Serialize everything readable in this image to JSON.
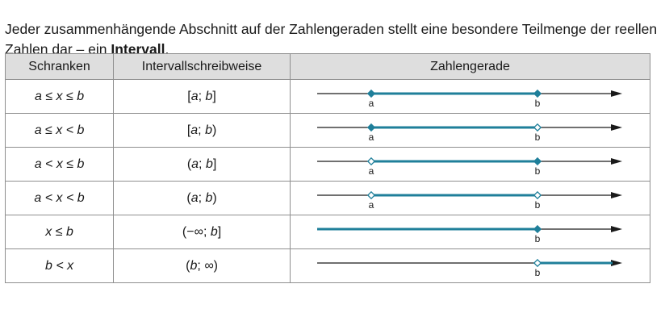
{
  "intro": {
    "text": "Jeder zusammenhängende Abschnitt auf der Zahlengeraden stellt eine besondere Teilmenge der reellen Zahlen dar – ein ",
    "bold": "Intervall",
    "end": "."
  },
  "table": {
    "headers": [
      "Schranken",
      "Intervallschreibweise",
      "Zahlengerade"
    ],
    "rows": [
      {
        "bound": "a ≤ x ≤ b",
        "n_open": "[",
        "n_l": "a",
        "n_sep": "; ",
        "n_r": "b",
        "n_close": "]",
        "label_a": "a",
        "label_b": "b",
        "left_closed": true,
        "right_closed": true,
        "left_infinite": false,
        "right_infinite": false
      },
      {
        "bound": "a ≤ x < b",
        "n_open": "[",
        "n_l": "a",
        "n_sep": "; ",
        "n_r": "b",
        "n_close": ")",
        "label_a": "a",
        "label_b": "b",
        "left_closed": true,
        "right_closed": false,
        "left_infinite": false,
        "right_infinite": false
      },
      {
        "bound": "a < x ≤ b",
        "n_open": "(",
        "n_l": "a",
        "n_sep": "; ",
        "n_r": "b",
        "n_close": "]",
        "label_a": "a",
        "label_b": "b",
        "left_closed": false,
        "right_closed": true,
        "left_infinite": false,
        "right_infinite": false
      },
      {
        "bound": "a < x < b",
        "n_open": "(",
        "n_l": "a",
        "n_sep": "; ",
        "n_r": "b",
        "n_close": ")",
        "label_a": "a",
        "label_b": "b",
        "left_closed": false,
        "right_closed": false,
        "left_infinite": false,
        "right_infinite": false
      },
      {
        "bound": "x ≤ b",
        "n_open": "(",
        "n_l": "−∞",
        "n_sep": "; ",
        "n_r": "b",
        "n_close": "]",
        "label_a": "",
        "label_b": "b",
        "left_closed": false,
        "right_closed": true,
        "left_infinite": true,
        "right_infinite": false
      },
      {
        "bound": "b < x",
        "n_open": "(",
        "n_l": "b",
        "n_sep": "; ",
        "n_r": "∞",
        "n_close": ")",
        "label_a": "",
        "label_b": "b",
        "left_closed": false,
        "right_closed": false,
        "left_infinite": false,
        "right_infinite": true
      }
    ]
  },
  "colors": {
    "interval": "#1f7f9a",
    "axis": "#1a1a1a",
    "header_bg": "#dedede",
    "border": "#8f8f8f"
  }
}
